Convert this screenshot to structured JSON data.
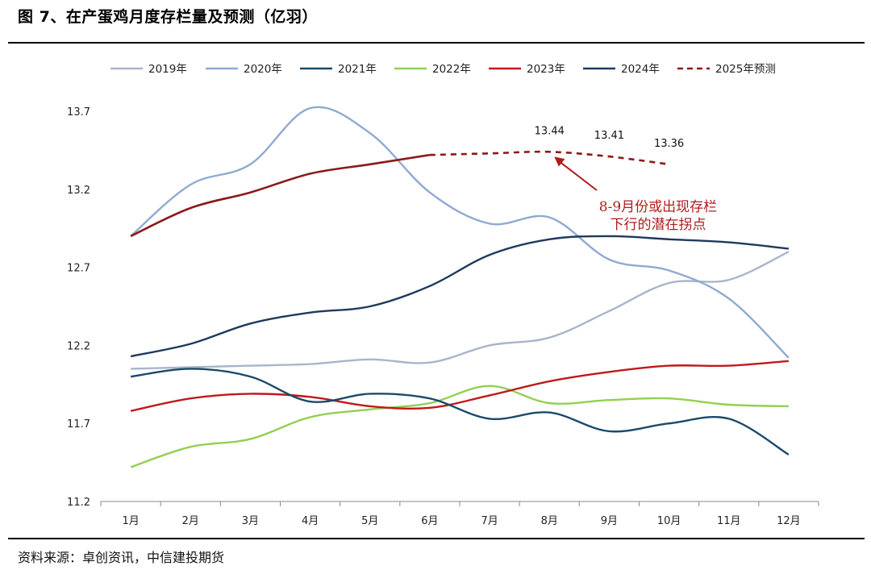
{
  "figure": {
    "title": "图 7、在产蛋鸡月度存栏量及预测（亿羽）",
    "source": "资料来源：卓创资讯，中信建投期货"
  },
  "chart_data": {
    "type": "line",
    "categories": [
      "1月",
      "2月",
      "3月",
      "4月",
      "5月",
      "6月",
      "7月",
      "8月",
      "9月",
      "10月",
      "11月",
      "12月"
    ],
    "ylim": [
      11.2,
      13.7
    ],
    "yticks": [
      11.2,
      11.7,
      12.2,
      12.7,
      13.2,
      13.7
    ],
    "grid": false,
    "legend_position": "top",
    "series": [
      {
        "name": "2019年",
        "color": "#a9b5cb",
        "dashed": false,
        "values": [
          12.05,
          12.06,
          12.07,
          12.08,
          12.11,
          12.09,
          12.2,
          12.25,
          12.42,
          12.6,
          12.62,
          12.8
        ]
      },
      {
        "name": "2020年",
        "color": "#8faad0",
        "dashed": false,
        "values": [
          12.9,
          13.23,
          13.36,
          13.72,
          13.56,
          13.18,
          12.98,
          13.02,
          12.75,
          12.68,
          12.5,
          12.12
        ]
      },
      {
        "name": "2021年",
        "color": "#1a4a6b",
        "dashed": false,
        "values": [
          12.0,
          12.05,
          12.0,
          11.84,
          11.89,
          11.86,
          11.73,
          11.77,
          11.65,
          11.7,
          11.73,
          11.5
        ]
      },
      {
        "name": "2022年",
        "color": "#92d050",
        "dashed": false,
        "values": [
          11.42,
          11.55,
          11.6,
          11.74,
          11.79,
          11.83,
          11.94,
          11.83,
          11.85,
          11.86,
          11.82,
          11.81
        ]
      },
      {
        "name": "2023年",
        "color": "#c0191c",
        "dashed": false,
        "values": [
          11.78,
          11.86,
          11.89,
          11.87,
          11.81,
          11.8,
          11.88,
          11.97,
          12.03,
          12.07,
          12.07,
          12.1
        ]
      },
      {
        "name": "2024年",
        "color": "#1f3a5c",
        "dashed": false,
        "values": [
          12.13,
          12.21,
          12.34,
          12.41,
          12.45,
          12.58,
          12.78,
          12.88,
          12.9,
          12.88,
          12.86,
          12.82
        ]
      },
      {
        "name": "2025年预测",
        "color": "#8b1a1a",
        "dashed": true,
        "values": [
          12.9,
          13.08,
          13.18,
          13.3,
          13.36,
          13.42,
          13.43,
          13.44,
          13.41,
          13.36,
          null,
          null
        ],
        "solid_until_index": 5,
        "data_labels": [
          {
            "index": 7,
            "text": "13.44"
          },
          {
            "index": 8,
            "text": "13.41"
          },
          {
            "index": 9,
            "text": "13.36"
          }
        ]
      }
    ],
    "annotation": {
      "lines": [
        "8-9月份或出现存栏",
        "下行的潜在拐点"
      ],
      "color": "#b01c1c",
      "arrow_to_index": 7
    }
  }
}
